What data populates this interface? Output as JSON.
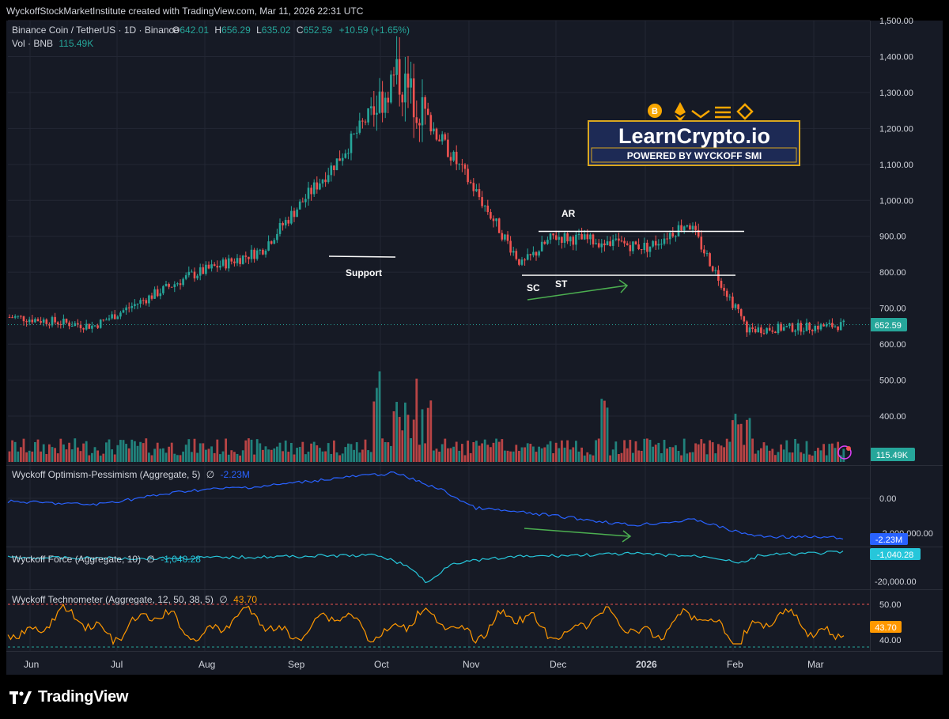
{
  "header": {
    "caption": "WyckoffStockMarketInstitute created with TradingView.com, Mar 11, 2026 22:31 UTC"
  },
  "legend": {
    "symbol": "Binance Coin / TetherUS · 1D · Binance",
    "o_label": "O",
    "o_value": "642.01",
    "h_label": "H",
    "h_value": "656.29",
    "l_label": "L",
    "l_value": "635.02",
    "c_label": "C",
    "c_value": "652.59",
    "change": "+10.59 (+1.65%)",
    "vol_label": "Vol · BNB",
    "vol_value": "115.49K"
  },
  "price_axis": {
    "ticks": [
      "1,500.00",
      "1,400.00",
      "1,300.00",
      "1,200.00",
      "1,100.00",
      "1,000.00",
      "900.00",
      "800.00",
      "700.00",
      "600.00",
      "500.00",
      "400.00"
    ]
  },
  "badges": {
    "last_price": "652.59",
    "volume": "115.49K",
    "optimism": "-2.23M",
    "force": "-1,040.28",
    "technometer": "43.70"
  },
  "annotations": {
    "support": "Support",
    "ar": "AR",
    "sc": "SC",
    "st": "ST"
  },
  "logo": {
    "title": "LearnCrypto.io",
    "subtitle": "POWERED BY WYCKOFF SMI"
  },
  "indicators": {
    "optimism": {
      "name": "Wyckoff Optimism-Pessimism (Aggregate, 5)",
      "sym": "∅",
      "value": "-2.23M",
      "ticks": [
        "0.00",
        "-2,000,000.00"
      ]
    },
    "force": {
      "name": "Wyckoff Force (Aggregate, 10)",
      "sym": "∅",
      "value": "-1,040.28",
      "ticks": [
        "-20,000.00"
      ]
    },
    "technometer": {
      "name": "Wyckoff Technometer (Aggregate, 12, 50, 38, 5)",
      "sym": "∅",
      "value": "43.70",
      "ticks": [
        "50.00",
        "40.00"
      ]
    }
  },
  "time_axis": {
    "labels": [
      "Jun",
      "Jul",
      "Aug",
      "Sep",
      "Oct",
      "Nov",
      "Dec",
      "2026",
      "Jan",
      "Feb",
      "Mar"
    ]
  },
  "footer": {
    "brand": "TradingView"
  },
  "colors": {
    "up": "#26a69a",
    "down": "#ef5350",
    "optimism_line": "#2962ff",
    "force_line": "#26c6da",
    "techno_line": "#ff9800",
    "bg": "#161a25",
    "grid": "#232734"
  },
  "chart_data": [
    {
      "type": "candlestick",
      "title": "Binance Coin / TetherUS · 1D · Binance",
      "ylim": [
        400,
        1500
      ],
      "grid": true,
      "x": [
        "Jun",
        "Jul",
        "Aug",
        "Sep",
        "Oct",
        "Nov",
        "Dec",
        "2026",
        "Feb",
        "Mar"
      ],
      "anchors": [
        {
          "date": "Jun",
          "close": 675
        },
        {
          "date": "Jul",
          "close": 650
        },
        {
          "date": "Aug",
          "close": 790
        },
        {
          "date": "Sep",
          "close": 860
        },
        {
          "date": "Oct",
          "close": 1120
        },
        {
          "date": "Oct-peak",
          "close": 1350
        },
        {
          "date": "Nov",
          "close": 1030
        },
        {
          "date": "Nov-low",
          "close": 820
        },
        {
          "date": "Dec",
          "close": 900
        },
        {
          "date": "2026",
          "close": 870
        },
        {
          "date": "Jan-high",
          "close": 940
        },
        {
          "date": "Feb",
          "close": 640
        },
        {
          "date": "Mar",
          "close": 652.59
        }
      ],
      "levels": {
        "ar": 910,
        "sc": 795,
        "support": 845
      }
    },
    {
      "type": "bar",
      "title": "Vol · BNB",
      "last": "115.49K"
    },
    {
      "type": "line",
      "title": "Wyckoff Optimism-Pessimism (Aggregate, 5)",
      "last": -2230000
    },
    {
      "type": "line",
      "title": "Wyckoff Force (Aggregate, 10)",
      "last": -1040.28
    },
    {
      "type": "line",
      "title": "Wyckoff Technometer (Aggregate, 12, 50, 38, 5)",
      "ylim": [
        38,
        52
      ],
      "last": 43.7
    }
  ]
}
